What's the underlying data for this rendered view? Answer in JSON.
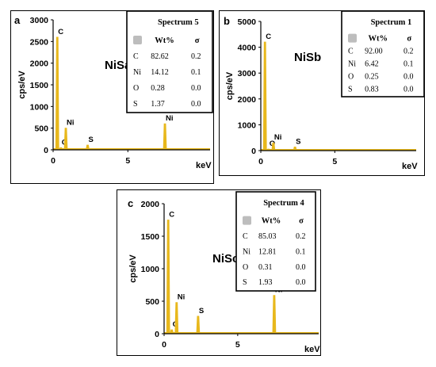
{
  "chart_data": [
    {
      "type": "line",
      "panel_letter": "a",
      "sample": "NiSa",
      "ylabel": "cps/eV",
      "xlabel": "keV",
      "xlim": [
        0,
        10.5
      ],
      "ylim": [
        0,
        3000
      ],
      "xticks": [
        "0",
        "5"
      ],
      "yticks": [
        "0",
        "500",
        "1000",
        "1500",
        "2000",
        "2500",
        "3000"
      ],
      "peaks": [
        {
          "label": "C",
          "x": 0.28,
          "y": 2600
        },
        {
          "label": "O",
          "x": 0.52,
          "y": 50
        },
        {
          "label": "Ni",
          "x": 0.85,
          "y": 500
        },
        {
          "label": "S",
          "x": 2.31,
          "y": 110
        },
        {
          "label": "Ni",
          "x": 7.48,
          "y": 600
        }
      ],
      "table": {
        "title": "Spectrum 5",
        "headers": [
          "Wt%",
          "σ"
        ],
        "rows": [
          {
            "el": "C",
            "wt": "82.62",
            "sigma": "0.2"
          },
          {
            "el": "Ni",
            "wt": "14.12",
            "sigma": "0.1"
          },
          {
            "el": "O",
            "wt": "0.28",
            "sigma": "0.0"
          },
          {
            "el": "S",
            "wt": "1.37",
            "sigma": "0.0"
          }
        ]
      },
      "color": "#e8b81c"
    },
    {
      "type": "line",
      "panel_letter": "b",
      "sample": "NiSb",
      "ylabel": "cps/eV",
      "xlabel": "keV",
      "xlim": [
        0,
        10.5
      ],
      "ylim": [
        0,
        5000
      ],
      "xticks": [
        "0",
        "5"
      ],
      "yticks": [
        "0",
        "1000",
        "2000",
        "3000",
        "4000",
        "5000"
      ],
      "peaks": [
        {
          "label": "C",
          "x": 0.28,
          "y": 4200
        },
        {
          "label": "O",
          "x": 0.52,
          "y": 60
        },
        {
          "label": "Ni",
          "x": 0.85,
          "y": 300
        },
        {
          "label": "S",
          "x": 2.31,
          "y": 140
        }
      ],
      "table": {
        "title": "Spectrum 1",
        "headers": [
          "Wt%",
          "σ"
        ],
        "rows": [
          {
            "el": "C",
            "wt": "92.00",
            "sigma": "0.2"
          },
          {
            "el": "Ni",
            "wt": "6.42",
            "sigma": "0.1"
          },
          {
            "el": "O",
            "wt": "0.25",
            "sigma": "0.0"
          },
          {
            "el": "S",
            "wt": "0.83",
            "sigma": "0.0"
          }
        ]
      },
      "color": "#e8b81c"
    },
    {
      "type": "line",
      "panel_letter": "c",
      "sample": "NiSc",
      "ylabel": "cps/eV",
      "xlabel": "keV",
      "xlim": [
        0,
        10.5
      ],
      "ylim": [
        0,
        2000
      ],
      "xticks": [
        "0",
        "5"
      ],
      "yticks": [
        "0",
        "500",
        "1000",
        "1500",
        "2000"
      ],
      "peaks": [
        {
          "label": "C",
          "x": 0.28,
          "y": 1750
        },
        {
          "label": "O",
          "x": 0.52,
          "y": 60
        },
        {
          "label": "Ni",
          "x": 0.85,
          "y": 480
        },
        {
          "label": "S",
          "x": 2.31,
          "y": 270
        },
        {
          "label": "Ni",
          "x": 7.48,
          "y": 590
        }
      ],
      "table": {
        "title": "Spectrum 4",
        "headers": [
          "Wt%",
          "σ"
        ],
        "rows": [
          {
            "el": "C",
            "wt": "85.03",
            "sigma": "0.2"
          },
          {
            "el": "Ni",
            "wt": "12.81",
            "sigma": "0.1"
          },
          {
            "el": "O",
            "wt": "0.31",
            "sigma": "0.0"
          },
          {
            "el": "S",
            "wt": "1.93",
            "sigma": "0.0"
          }
        ]
      },
      "color": "#e8b81c"
    }
  ]
}
